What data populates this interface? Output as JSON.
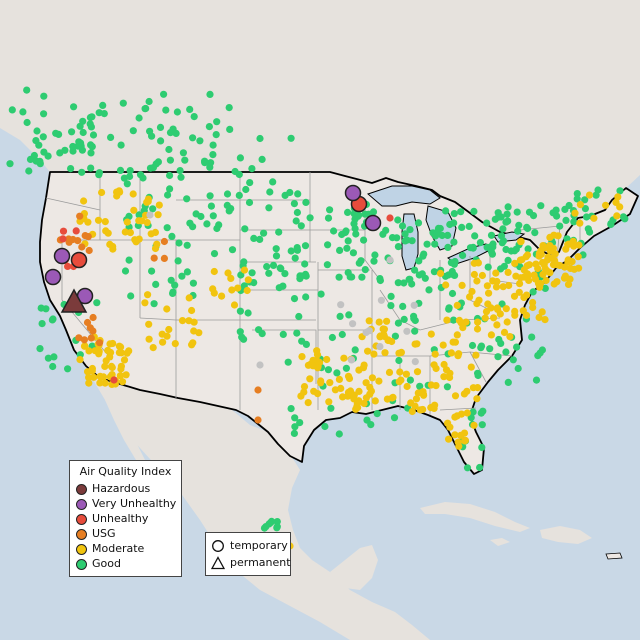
{
  "map": {
    "colors": {
      "ocean": "#c9d8e6",
      "land": "#e6e2dd",
      "usa_land": "#ede8e4",
      "lakes": "#bfd3e5",
      "usa_border": "#000000",
      "state_lines": "#9b9b9b"
    },
    "categories": [
      {
        "key": "hazardous",
        "color": "#7b3b3b"
      },
      {
        "key": "very_unhealthy",
        "color": "#9b59b6"
      },
      {
        "key": "unhealthy",
        "color": "#e74c3c"
      },
      {
        "key": "usg",
        "color": "#e67e22"
      },
      {
        "key": "moderate",
        "color": "#f1c40f"
      },
      {
        "key": "good",
        "color": "#2ecc71"
      },
      {
        "key": "no_data",
        "color": "#c2c2c2"
      }
    ]
  },
  "legend": {
    "title": "Air Quality Index",
    "items": [
      {
        "label": "Hazardous",
        "color": "#7b3b3b"
      },
      {
        "label": "Very Unhealthy",
        "color": "#9b59b6"
      },
      {
        "label": "Unhealthy",
        "color": "#e74c3c"
      },
      {
        "label": "USG",
        "color": "#e67e22"
      },
      {
        "label": "Moderate",
        "color": "#f1c40f"
      },
      {
        "label": "Good",
        "color": "#2ecc71"
      }
    ]
  },
  "shape_legend": {
    "items": [
      {
        "label": "temporary",
        "shape": "circle"
      },
      {
        "label": "permanent",
        "shape": "triangle"
      }
    ]
  }
}
